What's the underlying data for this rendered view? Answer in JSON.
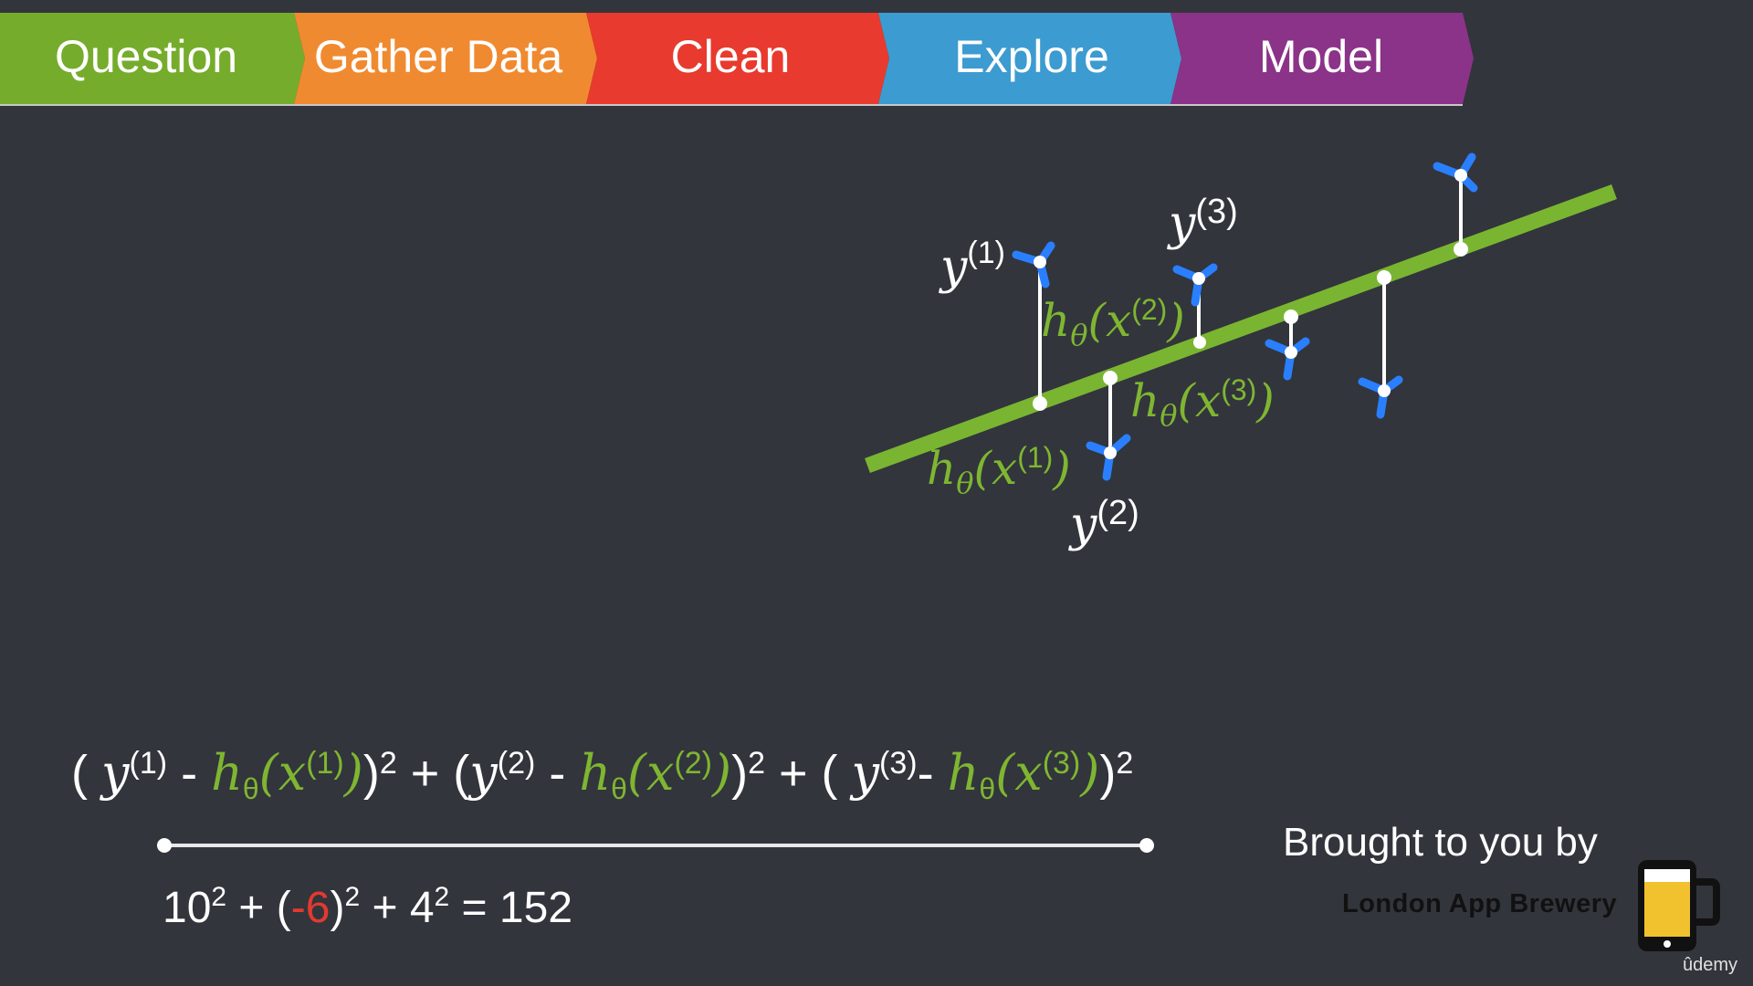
{
  "stages": [
    {
      "label": "Question",
      "color": "#76ac2c"
    },
    {
      "label": "Gather Data",
      "color": "#f08a30"
    },
    {
      "label": "Clean",
      "color": "#e83a2e"
    },
    {
      "label": "Explore",
      "color": "#3c9bd0"
    },
    {
      "label": "Model",
      "color": "#8b3388"
    }
  ],
  "colors": {
    "background": "#32353c",
    "regression_line": "#7ab532",
    "data_point": "#2a7fff",
    "residual_line": "#ffffff",
    "hypothesis_text": "#7fb631",
    "negative_value": "#e4392f"
  },
  "diagram": {
    "labels": {
      "y1": "y",
      "y1_sup": "(1)",
      "y2": "y",
      "y2_sup": "(2)",
      "y3": "y",
      "y3_sup": "(3)",
      "h_x1": "h",
      "h_x1_sub": "θ",
      "h_x1_arg": "(x",
      "h_x1_sup": "(1)",
      "h_x1_close": ")",
      "h_x2": "h",
      "h_x2_sub": "θ",
      "h_x2_arg": "(x",
      "h_x2_sup": "(2)",
      "h_x2_close": ")",
      "h_x3": "h",
      "h_x3_sub": "θ",
      "h_x3_arg": "(x",
      "h_x3_sup": "(3)",
      "h_x3_close": ")"
    }
  },
  "formula": {
    "open1": "( ",
    "y1": "y",
    "y1_sup": "(1)",
    "minus1": " - ",
    "h1": "h",
    "h1_sub": "θ",
    "h1_arg": "(x",
    "h1_sup": "(1)",
    "h1_close": ")",
    "close1": ")",
    "sq1": "2",
    "plus1": " + (",
    "y2": "y",
    "y2_sup": "(2)",
    "minus2": " - ",
    "h2": "h",
    "h2_sub": "θ",
    "h2_arg": "(x",
    "h2_sup": "(2)",
    "h2_close": ")",
    "close2": ")",
    "sq2": "2",
    "plus2": " + ( ",
    "y3": "y",
    "y3_sup": "(3)",
    "minus3": "- ",
    "h3": "h",
    "h3_sub": "θ",
    "h3_arg": "(x",
    "h3_sup": "(3)",
    "h3_close": ")",
    "close3": ")",
    "sq3": "2"
  },
  "result": {
    "a": "10",
    "a_sq": "2",
    "plus1": " + (",
    "b": "-6",
    "b_close": ")",
    "b_sq": "2",
    "plus2": " + 4",
    "c_sq": "2",
    "equals": " = 152"
  },
  "footer": {
    "brought": "Brought to you by",
    "brand": "London App Brewery",
    "udemy": "ûdemy"
  }
}
